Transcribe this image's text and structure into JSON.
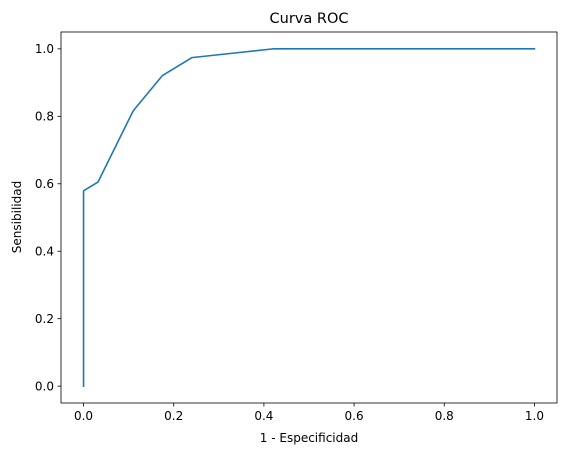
{
  "chart_data": {
    "type": "line",
    "title": "Curva ROC",
    "xlabel": "1 - Especificidad",
    "ylabel": "Sensibilidad",
    "xlim": [
      -0.05,
      1.05
    ],
    "ylim": [
      -0.05,
      1.05
    ],
    "xticks": [
      "0.0",
      "0.2",
      "0.4",
      "0.6",
      "0.8",
      "1.0"
    ],
    "yticks": [
      "0.0",
      "0.2",
      "0.4",
      "0.6",
      "0.8",
      "1.0"
    ],
    "grid": false,
    "legend": "none",
    "series": [
      {
        "color": "#1f77b4",
        "x": [
          0.0,
          0.0,
          0.032,
          0.11,
          0.175,
          0.24,
          0.33,
          0.42,
          1.0
        ],
        "y": [
          0.0,
          0.579,
          0.605,
          0.816,
          0.921,
          0.974,
          0.987,
          1.0,
          1.0
        ]
      }
    ]
  }
}
